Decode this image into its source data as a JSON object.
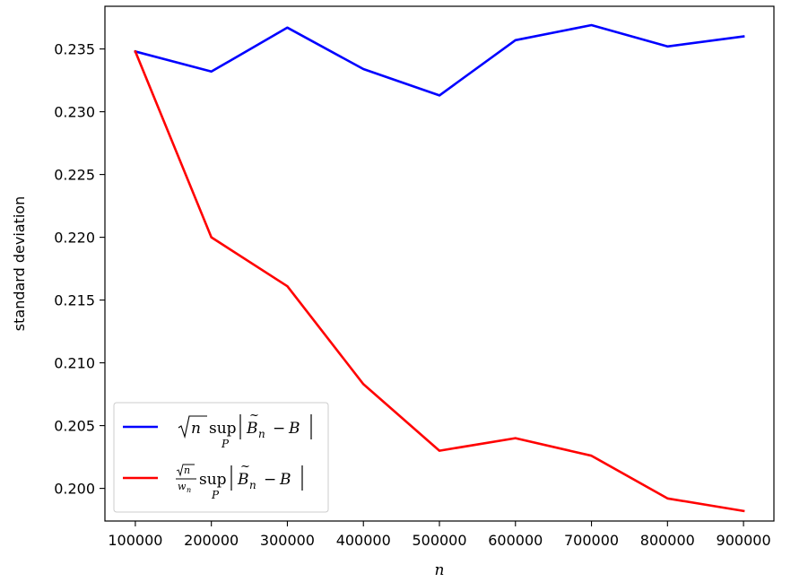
{
  "chart_data": {
    "type": "line",
    "xlabel": "n",
    "ylabel": "standard deviation",
    "x": [
      100000,
      200000,
      300000,
      400000,
      500000,
      600000,
      700000,
      800000,
      900000
    ],
    "xlim": [
      60000,
      940000
    ],
    "ylim": [
      0.1974,
      0.2384
    ],
    "x_ticks": [
      "100000",
      "200000",
      "300000",
      "400000",
      "500000",
      "600000",
      "700000",
      "800000",
      "900000"
    ],
    "y_ticks": [
      {
        "value": 0.2,
        "label": "0.200"
      },
      {
        "value": 0.205,
        "label": "0.205"
      },
      {
        "value": 0.21,
        "label": "0.210"
      },
      {
        "value": 0.215,
        "label": "0.215"
      },
      {
        "value": 0.22,
        "label": "0.220"
      },
      {
        "value": 0.225,
        "label": "0.225"
      },
      {
        "value": 0.23,
        "label": "0.230"
      },
      {
        "value": 0.235,
        "label": "0.235"
      }
    ],
    "grid": false,
    "legend_position": "lower-left",
    "series": [
      {
        "name": "√n sup_P |B̃_n − B|",
        "color": "#0000ff",
        "values": [
          0.2348,
          0.2332,
          0.2367,
          0.2334,
          0.2313,
          0.2357,
          0.2369,
          0.2352,
          0.236
        ]
      },
      {
        "name": "(√n / w_n) sup_P |B̃_n − B|",
        "color": "#ff0000",
        "values": [
          0.2348,
          0.22,
          0.2161,
          0.2083,
          0.203,
          0.204,
          0.2026,
          0.1992,
          0.1982
        ]
      }
    ]
  }
}
